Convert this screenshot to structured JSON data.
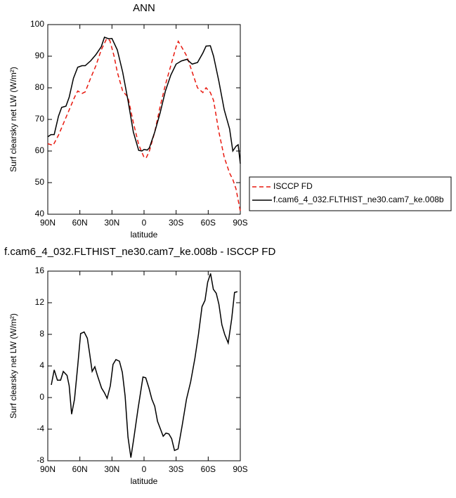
{
  "chart_data": [
    {
      "type": "line",
      "title": "ANN",
      "xlabel": "latitude",
      "ylabel": "Surf clearsky net LW (W/m²)",
      "xlim": [
        90,
        -90
      ],
      "xticks": [
        {
          "value": 90,
          "label": "90N"
        },
        {
          "value": 60,
          "label": "60N"
        },
        {
          "value": 30,
          "label": "30N"
        },
        0,
        {
          "value": -30,
          "label": "30S"
        },
        {
          "value": -60,
          "label": "60S"
        },
        {
          "value": -90,
          "label": "90S"
        }
      ],
      "ylim": [
        40,
        100
      ],
      "yticks": [
        40,
        50,
        60,
        70,
        80,
        90,
        100
      ],
      "legend": "right",
      "series": [
        {
          "name": "ISCCP FD",
          "color": "#e8190f",
          "style": "dashed",
          "x": [
            90,
            85,
            80,
            75,
            70,
            65,
            62,
            58,
            55,
            50,
            45,
            40,
            35,
            32,
            28,
            25,
            20,
            15,
            10,
            5,
            0,
            -2,
            -5,
            -10,
            -15,
            -20,
            -25,
            -30,
            -32,
            -35,
            -40,
            -45,
            -50,
            -55,
            -58,
            -62,
            -65,
            -70,
            -75,
            -80,
            -83,
            -86,
            -90
          ],
          "values": [
            62.3,
            61.8,
            65,
            69,
            73,
            77,
            79,
            78.2,
            78.7,
            83,
            87,
            92,
            95.5,
            95,
            90,
            85,
            79,
            77,
            69,
            62,
            58,
            57.8,
            60,
            66,
            74,
            81,
            87,
            93,
            94.7,
            93,
            90,
            85,
            80,
            78.5,
            80,
            78.5,
            76,
            66,
            58,
            53,
            51,
            48,
            41
          ]
        },
        {
          "name": "f.cam6_4_032.FLTHIST_ne30.cam7_ke.008b",
          "color": "#000000",
          "style": "solid",
          "x": [
            90,
            87,
            84,
            80,
            77,
            73,
            70,
            66,
            62,
            58,
            55,
            50,
            45,
            40,
            37,
            33,
            30,
            25,
            20,
            15,
            10,
            5,
            2,
            0,
            -3,
            -5,
            -10,
            -15,
            -20,
            -25,
            -30,
            -35,
            -40,
            -45,
            -50,
            -55,
            -58,
            -62,
            -65,
            -70,
            -75,
            -80,
            -83,
            -86,
            -88,
            -90
          ],
          "values": [
            64.5,
            65.2,
            65.2,
            71,
            73.8,
            74.2,
            77,
            83,
            86.5,
            87,
            87,
            88.5,
            90.5,
            93,
            96,
            95.5,
            95.6,
            92,
            85,
            76,
            66,
            60.2,
            60,
            60.5,
            60.3,
            61,
            66,
            72,
            79,
            84,
            87.5,
            88.5,
            89,
            87.5,
            88,
            91,
            93.2,
            93.3,
            90,
            82,
            73,
            67,
            60,
            61.5,
            62,
            56
          ]
        }
      ]
    },
    {
      "type": "line",
      "title": "f.cam6_4_032.FLTHIST_ne30.cam7_ke.008b - ISCCP FD",
      "xlabel": "latitude",
      "ylabel": "Surf clearsky net LW (W/m²)",
      "xlim": [
        90,
        -90
      ],
      "xticks": [
        {
          "value": 90,
          "label": "90N"
        },
        {
          "value": 60,
          "label": "60N"
        },
        {
          "value": 30,
          "label": "30N"
        },
        0,
        {
          "value": -30,
          "label": "30S"
        },
        {
          "value": -60,
          "label": "60S"
        },
        {
          "value": -90,
          "label": "90S"
        }
      ],
      "ylim": [
        -8,
        16
      ],
      "yticks": [
        -8,
        -4,
        0,
        4,
        8,
        12,
        16
      ],
      "series": [
        {
          "color": "#000000",
          "style": "solid",
          "x": [
            86.7,
            84,
            81,
            78,
            75.5,
            72,
            70,
            67.7,
            65,
            62,
            59.3,
            56,
            53,
            51,
            48.5,
            46,
            43.6,
            39.7,
            37,
            34.5,
            31.5,
            29,
            26.3,
            23,
            20.3,
            17.7,
            15,
            12.3,
            9.6,
            5.7,
            1,
            -1.6,
            -4.6,
            -7.3,
            -10,
            -12.6,
            -17.9,
            -20.5,
            -23.2,
            -25.8,
            -28.5,
            -31.8,
            -35.7,
            -39.7,
            -43.6,
            -47.6,
            -50.9,
            -54.2,
            -57,
            -59.5,
            -62.2,
            -64.8,
            -67.5,
            -70,
            -72.8,
            -75.4,
            -78.7,
            -82,
            -84.6,
            -87.3
          ],
          "values": [
            1.6,
            3.5,
            2.2,
            2.2,
            3.3,
            2.8,
            1.5,
            -2.1,
            -0.2,
            4,
            8.1,
            8.3,
            7.5,
            5.7,
            3.3,
            3.9,
            2.8,
            1.2,
            0.6,
            -0.1,
            1.5,
            4.2,
            4.8,
            4.6,
            3.2,
            0.2,
            -5,
            -7.6,
            -5.2,
            -1.5,
            2.6,
            2.5,
            1.2,
            -0.2,
            -1.1,
            -3,
            -4.9,
            -4.5,
            -4.6,
            -5.2,
            -6.7,
            -6.5,
            -3.5,
            -0.2,
            2,
            5,
            8,
            11.5,
            12.3,
            14.6,
            15.7,
            13.7,
            13.2,
            11.8,
            9.2,
            8,
            6.9,
            10,
            13.3,
            13.4
          ]
        }
      ]
    }
  ]
}
